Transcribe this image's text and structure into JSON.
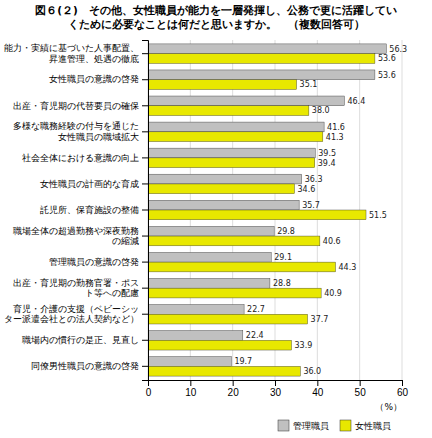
{
  "chart_data": {
    "type": "bar",
    "orientation": "horizontal",
    "title": "図６(２)　その他、女性職員が能力を一層発揮し、公務で更に活躍してい\nくために必要なことは何だと思いますか。　（複数回答可）",
    "categories": [
      "能力・実績に基づいた人事配置、\n昇進管理、処遇の徹底",
      "女性職員の意識の啓発",
      "出産・育児期の代替要員の確保",
      "多様な職務経験の付与を通じた\n女性職員の職域拡大",
      "社会全体における意識の向上",
      "女性職員の計画的な育成",
      "託児所、保育施設の整備",
      "職場全体の超過勤務や深夜勤務\nの縮減",
      "管理職員の意識の啓発",
      "出産・育児期の勤務官署・ポス\nト等への配慮",
      "育児・介護の支援（ベビーシッ\nター派遣会社との法人契約など）",
      "職場内の慣行の是正、見直し",
      "同僚男性職員の意識の啓発"
    ],
    "series": [
      {
        "name": "管理職員",
        "color": "#c0c0c0",
        "values": [
          56.3,
          53.6,
          46.4,
          41.6,
          39.5,
          36.3,
          35.7,
          29.8,
          29.1,
          28.8,
          22.7,
          22.4,
          19.7
        ]
      },
      {
        "name": "女性職員",
        "color": "#e8e800",
        "values": [
          53.6,
          35.1,
          38.0,
          41.3,
          39.4,
          34.6,
          51.5,
          40.6,
          44.3,
          40.9,
          37.7,
          33.9,
          36.0
        ],
        "value_labels": [
          "53.6",
          "35.1",
          "38.0",
          "41.3",
          "39.4",
          "34.6",
          "51.5",
          "40.6",
          "44.3",
          "40.9",
          "37.7",
          "33.9",
          "36.0"
        ]
      }
    ],
    "xlabel": "（%）",
    "xlim": [
      0,
      60
    ],
    "xticks": [
      0,
      10,
      20,
      30,
      40,
      50,
      60
    ],
    "grid": true,
    "legend": "lower right",
    "data_labels": true
  }
}
